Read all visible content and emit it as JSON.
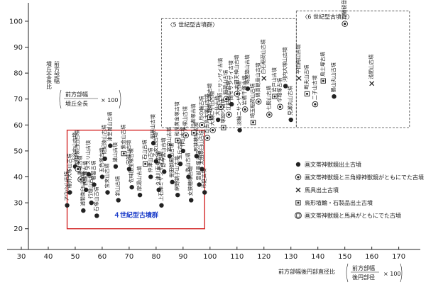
{
  "chart_data": {
    "type": "scatter",
    "xlim": [
      30,
      178
    ],
    "ylim": [
      12,
      106
    ],
    "x_ticks": [
      30,
      40,
      50,
      60,
      70,
      80,
      90,
      100,
      110,
      120,
      130,
      140,
      150,
      160,
      170
    ],
    "y_ticks": [
      20,
      30,
      40,
      50,
      60,
      70,
      80,
      90,
      100
    ],
    "ylabel": {
      "lines": [
        "前方部幅",
        "墳丘全長比"
      ],
      "formula_num": "前方部幅",
      "formula_den": "墳丘全長",
      "formula_mult": "× 100"
    },
    "xlabel": {
      "lines": [
        "前方部幅後円部直径比"
      ],
      "formula_num": "前方部幅",
      "formula_den": "後円部径",
      "formula_mult": "× 100"
    },
    "groups": [
      {
        "label": "〈5 世紀型古墳群〉",
        "x0": 82,
        "x1": 132,
        "y0": 59,
        "y1": 101,
        "style": "dashed"
      },
      {
        "label": "〈6 世紀型古墳群〉",
        "x0": 132,
        "x1": 174,
        "y0": 59,
        "y1": 104,
        "style": "dashed"
      },
      {
        "label": "４世紀型古墳群",
        "x0": 47,
        "x1": 98,
        "y0": 20,
        "y1": 58,
        "style": "solid-red"
      }
    ],
    "points": [
      {
        "x": 47,
        "y": 29,
        "m": "dot",
        "name": "アウ小山古墳"
      },
      {
        "x": 48,
        "y": 34,
        "m": "dot",
        "name": "椿井大塚山古墳"
      },
      {
        "x": 50,
        "y": 44,
        "m": "dot",
        "name": "渋谷向山古墳"
      },
      {
        "x": 51,
        "y": 43,
        "m": "sun",
        "name": "桜井茶臼山古墳"
      },
      {
        "x": 52,
        "y": 39,
        "m": "sun",
        "name": "黒塚古墳"
      },
      {
        "x": 53,
        "y": 27,
        "m": "dot",
        "name": "浦間茶臼山古墳"
      },
      {
        "x": 54,
        "y": 35,
        "m": "dot",
        "name": "西殿塚古墳"
      },
      {
        "x": 55,
        "y": 41,
        "m": "dot",
        "name": "メスリ山古墳"
      },
      {
        "x": 56,
        "y": 30,
        "m": "dot",
        "name": "行燈山古墳"
      },
      {
        "x": 57,
        "y": 37,
        "m": "dot",
        "name": "箸墓古墳"
      },
      {
        "x": 58,
        "y": 25,
        "m": "dot",
        "name": "石塚山古墳"
      },
      {
        "x": 60,
        "y": 40,
        "m": "dot",
        "name": "五色塚古墳"
      },
      {
        "x": 61,
        "y": 47,
        "m": "dot",
        "name": "佐紀陵山古墳"
      },
      {
        "x": 62,
        "y": 34,
        "m": "dot",
        "name": "宝来山古墳"
      },
      {
        "x": 63,
        "y": 52,
        "m": "dot",
        "name": "津堂城山古墳"
      },
      {
        "x": 65,
        "y": 44,
        "m": "dot",
        "name": "巣山古墳"
      },
      {
        "x": 66,
        "y": 31,
        "m": "dot",
        "name": "新山古墳"
      },
      {
        "x": 68,
        "y": 49,
        "m": "box",
        "name": "紫金山古墳"
      },
      {
        "x": 70,
        "y": 43,
        "m": "dot",
        "name": "宇部山古墳"
      },
      {
        "x": 71,
        "y": 36,
        "m": "dot",
        "name": "佐味田宝塚古墳"
      },
      {
        "x": 74,
        "y": 33,
        "m": "dot",
        "name": "摩湯山古墳"
      },
      {
        "x": 76,
        "y": 45,
        "m": "box",
        "name": "石山古墳"
      },
      {
        "x": 78,
        "y": 40,
        "m": "dot",
        "name": "仲津山古墳"
      },
      {
        "x": 79,
        "y": 53,
        "m": "dot",
        "name": "御墓山古墳"
      },
      {
        "x": 80,
        "y": 46,
        "m": "dot",
        "name": "乙女山古墳"
      },
      {
        "x": 81,
        "y": 35,
        "m": "dot",
        "name": "久津川車塚古墳"
      },
      {
        "x": 82,
        "y": 29,
        "m": "dot",
        "name": "上石津ミサンザイ古墳"
      },
      {
        "x": 83,
        "y": 42,
        "m": "dot",
        "name": "野中宮山古墳"
      },
      {
        "x": 85,
        "y": 48,
        "m": "dot",
        "name": "室宮山古墳"
      },
      {
        "x": 86,
        "y": 38,
        "m": "dot",
        "name": "誉田御廟山古墳"
      },
      {
        "x": 88,
        "y": 33,
        "m": "dot",
        "name": "網野銚子山古墳"
      },
      {
        "x": 89,
        "y": 45,
        "m": "dot",
        "name": "玉丘古墳"
      },
      {
        "x": 90,
        "y": 50,
        "m": "dot",
        "name": "作山古墳"
      },
      {
        "x": 92,
        "y": 40,
        "m": "dot",
        "name": "造山古墳"
      },
      {
        "x": 93,
        "y": 31,
        "m": "dot",
        "name": "女狭穂塚古墳"
      },
      {
        "x": 95,
        "y": 48,
        "m": "dot",
        "name": "男狭穂塚古墳"
      },
      {
        "x": 96,
        "y": 37,
        "m": "dot",
        "name": "雲部車塚古墳"
      },
      {
        "x": 97,
        "y": 43,
        "m": "dot",
        "name": "太田茶臼山古墳"
      },
      {
        "x": 98,
        "y": 34,
        "m": "dot",
        "name": "市庭古墳"
      },
      {
        "x": 88,
        "y": 54,
        "m": "box",
        "name": "和泉黄金塚古墳"
      },
      {
        "x": 91,
        "y": 56,
        "m": "sun",
        "name": "大塚山古墳"
      },
      {
        "x": 94,
        "y": 57,
        "m": "box",
        "name": "行者塚古墳"
      },
      {
        "x": 97,
        "y": 60,
        "m": "sun",
        "name": "月の輪古墳"
      },
      {
        "x": 99,
        "y": 55,
        "m": "sun",
        "name": "百舌鳥大塚山古墳"
      },
      {
        "x": 100,
        "y": 63,
        "m": "box",
        "name": "野毛大塚古墳"
      },
      {
        "x": 101,
        "y": 58,
        "m": "sun",
        "name": "大須二子山古墳"
      },
      {
        "x": 103,
        "y": 62,
        "m": "dot",
        "name": "大仙古墳"
      },
      {
        "x": 104,
        "y": 67,
        "m": "sun",
        "name": "土師ニサンザイ古墳"
      },
      {
        "x": 105,
        "y": 59,
        "m": "box",
        "name": "塚廻り古墳"
      },
      {
        "x": 106,
        "y": 70,
        "m": "sun",
        "name": "稲荷山古墳"
      },
      {
        "x": 107,
        "y": 64,
        "m": "sun",
        "name": "江田船山古墳"
      },
      {
        "x": 108,
        "y": 68,
        "m": "dot",
        "name": "岡ミサンザイ古墳"
      },
      {
        "x": 110,
        "y": 72,
        "m": "sun",
        "name": "太田天神山古墳"
      },
      {
        "x": 111,
        "y": 58,
        "m": "dot",
        "name": "淡輪ニサンザイ古墳"
      },
      {
        "x": 113,
        "y": 66,
        "m": "sun",
        "name": "岩橋千塚古墳"
      },
      {
        "x": 114,
        "y": 74,
        "m": "dot",
        "name": "高屋築山古墳"
      },
      {
        "x": 116,
        "y": 61,
        "m": "box",
        "name": "埼玉稲荷山古墳"
      },
      {
        "x": 118,
        "y": 69,
        "m": "sun",
        "name": "綿貫観音山古墳"
      },
      {
        "x": 120,
        "y": 78,
        "m": "cross",
        "name": "白石稲荷山古墳"
      },
      {
        "x": 122,
        "y": 64,
        "m": "sun",
        "name": "七輿山古墳"
      },
      {
        "x": 124,
        "y": 71,
        "m": "box",
        "name": "岩戸山古墳"
      },
      {
        "x": 126,
        "y": 67,
        "m": "sun",
        "name": "今城塚古墳"
      },
      {
        "x": 128,
        "y": 75,
        "m": "dot",
        "name": "河内大塚山古墳"
      },
      {
        "x": 130,
        "y": 62,
        "m": "dot",
        "name": "見瀬丸山古墳"
      },
      {
        "x": 133,
        "y": 78,
        "m": "cross",
        "name": "平田梅山古墳"
      },
      {
        "x": 136,
        "y": 72,
        "m": "box",
        "name": "断夫山古墳"
      },
      {
        "x": 139,
        "y": 68,
        "m": "sun",
        "name": "二子山古墳"
      },
      {
        "x": 142,
        "y": 77,
        "m": "box",
        "name": "鳥土塚古墳"
      },
      {
        "x": 146,
        "y": 71,
        "m": "dot",
        "name": "鶴山丸山古墳"
      },
      {
        "x": 150,
        "y": 99,
        "m": "sun",
        "name": "八幡観音塚古墳"
      },
      {
        "x": 160,
        "y": 76,
        "m": "cross",
        "name": "浅間山古墳"
      }
    ],
    "legend": [
      {
        "m": "dot",
        "text": "画文帯神獣鏡出土古墳"
      },
      {
        "m": "sun",
        "text": "画文帯神獣鏡と三角縁神獣鏡がともにでた古墳"
      },
      {
        "m": "cross",
        "text": "馬具出土古墳"
      },
      {
        "m": "box",
        "text": "鳥形埴輪・石製品出土古墳"
      },
      {
        "m": "sunbox",
        "text": "画文帯神獣鏡と馬具がともにでた古墳"
      }
    ]
  }
}
